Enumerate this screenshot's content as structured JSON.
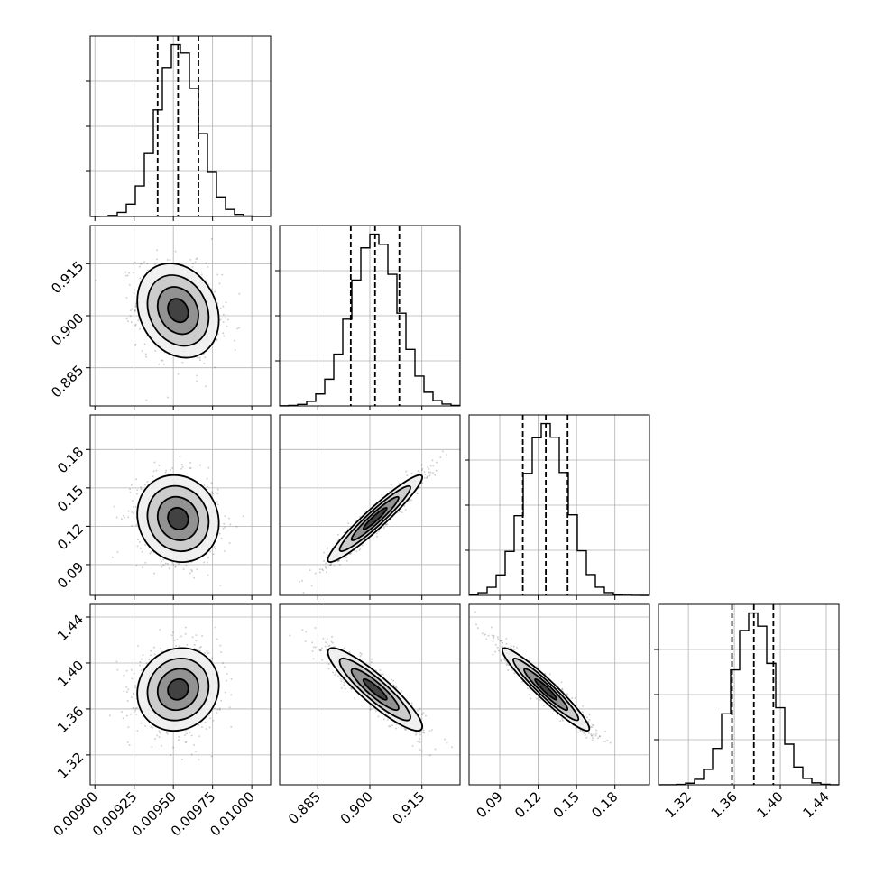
{
  "chart_data": {
    "type": "corner",
    "parameters": [
      {
        "range": [
          0.00897,
          0.01012
        ],
        "ticks": [
          0.009,
          0.00925,
          0.0095,
          0.00975,
          0.01
        ],
        "tick_labels": [
          "0.00900",
          "0.00925",
          "0.00950",
          "0.00975",
          "0.01000"
        ],
        "mean": 0.00953,
        "sd": 0.00013,
        "quantiles": [
          0.0094,
          0.00953,
          0.00966
        ]
      },
      {
        "range": [
          0.874,
          0.926
        ],
        "ticks": [
          0.885,
          0.9,
          0.915
        ],
        "tick_labels": [
          "0.885",
          "0.900",
          "0.915"
        ],
        "mean": 0.9015,
        "sd": 0.0068,
        "quantiles": [
          0.8945,
          0.9015,
          0.9085
        ]
      },
      {
        "range": [
          0.066,
          0.207
        ],
        "ticks": [
          0.09,
          0.12,
          0.15,
          0.18
        ],
        "tick_labels": [
          "0.09",
          "0.12",
          "0.15",
          "0.18"
        ],
        "mean": 0.126,
        "sd": 0.017,
        "quantiles": [
          0.108,
          0.126,
          0.143
        ]
      },
      {
        "range": [
          1.294,
          1.451
        ],
        "ticks": [
          1.32,
          1.36,
          1.4,
          1.44
        ],
        "tick_labels": [
          "1.32",
          "1.36",
          "1.40",
          "1.44"
        ],
        "mean": 1.377,
        "sd": 0.018,
        "quantiles": [
          1.358,
          1.377,
          1.394
        ]
      }
    ],
    "correlations": [
      [
        1,
        -0.2,
        -0.1,
        0.1
      ],
      [
        -0.2,
        1,
        0.95,
        -0.9
      ],
      [
        -0.1,
        0.95,
        1,
        -0.95
      ],
      [
        0.1,
        -0.9,
        -0.95,
        1
      ]
    ],
    "histogram_bins": 20,
    "grid": true,
    "colors": {
      "line": "#000000",
      "points": "#000000",
      "grid": "#b0b0b0",
      "background": "#ffffff"
    }
  }
}
